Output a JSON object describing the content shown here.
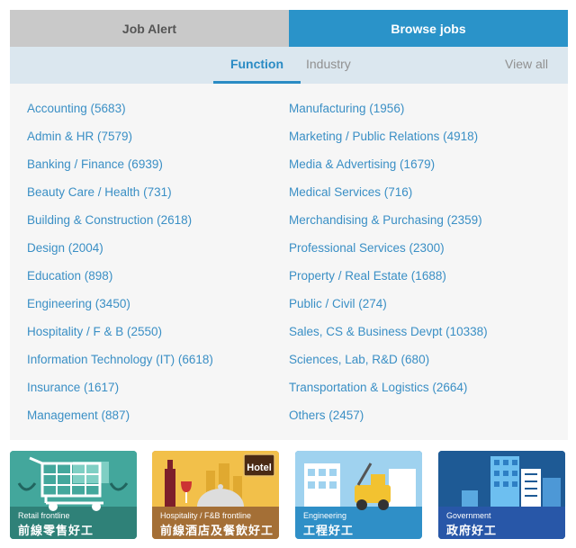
{
  "top_tabs": {
    "job_alert": "Job Alert",
    "browse_jobs": "Browse jobs"
  },
  "sub_tabs": {
    "function": "Function",
    "industry": "Industry",
    "view_all": "View all"
  },
  "functions_left": [
    "Accounting (5683)",
    "Admin & HR (7579)",
    "Banking / Finance (6939)",
    "Beauty Care / Health (731)",
    "Building & Construction (2618)",
    "Design (2004)",
    "Education (898)",
    "Engineering (3450)",
    "Hospitality / F & B (2550)",
    "Information Technology (IT) (6618)",
    "Insurance (1617)",
    "Management (887)"
  ],
  "functions_right": [
    "Manufacturing (1956)",
    "Marketing / Public Relations (4918)",
    "Media & Advertising (1679)",
    "Medical Services (716)",
    "Merchandising & Purchasing (2359)",
    "Professional Services (2300)",
    "Property / Real Estate (1688)",
    "Public / Civil (274)",
    "Sales, CS & Business Devpt (10338)",
    "Sciences, Lab, R&D (680)",
    "Transportation & Logistics (2664)",
    "Others (2457)"
  ],
  "banners": [
    {
      "en": "Retail frontline",
      "zh": "前線零售好工",
      "color": "#3c9a91",
      "icon": "shopping-cart-icon"
    },
    {
      "en": "Hospitality / F&B frontline",
      "zh": "前線酒店及餐飲好工",
      "color": "#b07a3c",
      "icon": "hotel-icon",
      "sign": "Hotel"
    },
    {
      "en": "Engineering",
      "zh": "工程好工",
      "color": "#2f8fc7",
      "icon": "forklift-icon"
    },
    {
      "en": "Government",
      "zh": "政府好工",
      "color": "#1f5c99",
      "icon": "government-building-icon"
    }
  ]
}
